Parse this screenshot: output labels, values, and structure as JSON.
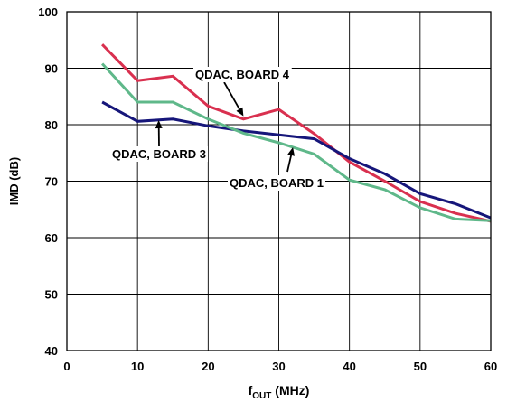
{
  "chart_data": {
    "type": "line",
    "title": "",
    "xlabel": {
      "main": "f",
      "sub": "OUT",
      "unit": " (MHz)"
    },
    "ylabel": "IMD (dB)",
    "xlim": [
      0,
      60
    ],
    "ylim": [
      40,
      100
    ],
    "xticks": [
      0,
      10,
      20,
      30,
      40,
      50,
      60
    ],
    "yticks": [
      40,
      50,
      60,
      70,
      80,
      90,
      100
    ],
    "grid": true,
    "legend": "none",
    "series": [
      {
        "name": "QDAC, BOARD 4",
        "color": "#d9304f",
        "x": [
          5,
          10,
          15,
          20,
          25,
          30,
          35,
          40,
          45,
          50,
          55,
          60
        ],
        "y": [
          94.2,
          87.8,
          88.6,
          83.3,
          81.0,
          82.7,
          78.4,
          73.4,
          70.0,
          66.4,
          64.3,
          62.9
        ]
      },
      {
        "name": "QDAC, BOARD 3",
        "color": "#16167a",
        "x": [
          5,
          10,
          15,
          20,
          25,
          30,
          35,
          40,
          45,
          50,
          55,
          60
        ],
        "y": [
          84.0,
          80.6,
          81.0,
          79.8,
          78.9,
          78.2,
          77.5,
          74.0,
          71.3,
          67.8,
          66.0,
          63.5
        ]
      },
      {
        "name": "QDAC, BOARD 1",
        "color": "#5fb88a",
        "x": [
          5,
          10,
          15,
          20,
          25,
          30,
          35,
          40,
          45,
          50,
          55,
          60
        ],
        "y": [
          90.8,
          84.0,
          84.0,
          81.0,
          78.5,
          76.8,
          74.8,
          70.2,
          68.5,
          65.3,
          63.3,
          63.0
        ]
      }
    ],
    "annotations": [
      {
        "text": "QDAC, BOARD 4",
        "series": "QDAC, BOARD 4",
        "point_x": 25,
        "point_y": 81.5
      },
      {
        "text": "QDAC, BOARD 3",
        "series": "QDAC, BOARD 3",
        "point_x": 13,
        "point_y": 80.8
      },
      {
        "text": "QDAC, BOARD 1",
        "series": "QDAC, BOARD 1",
        "point_x": 32,
        "point_y": 76.0
      }
    ]
  }
}
